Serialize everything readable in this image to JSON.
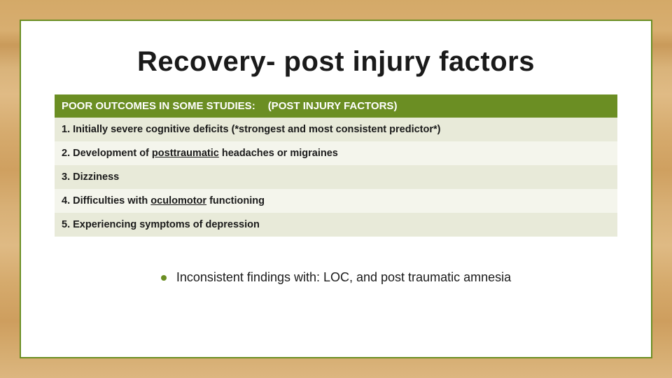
{
  "slide": {
    "title": "Recovery- post injury factors",
    "header_left": "POOR OUTCOMES IN SOME STUDIES:",
    "header_right": "(POST INJURY FACTORS)",
    "rows": [
      {
        "prefix": "1. Initially severe cognitive deficits (",
        "emphasis": "*strongest and most consistent predictor*",
        "suffix": ")"
      },
      {
        "prefix": "2. Development of ",
        "underline": "posttraumatic",
        "suffix": " headaches or migraines"
      },
      {
        "text": "3. Dizziness"
      },
      {
        "prefix": "4. Difficulties with ",
        "underline": "oculomotor",
        "suffix": " functioning"
      },
      {
        "text": "5. Experiencing symptoms of depression"
      }
    ],
    "bullet": "Inconsistent findings with: LOC, and post traumatic amnesia"
  },
  "colors": {
    "accent": "#6b8e23",
    "row_odd": "#e8ead9",
    "row_even": "#f4f5ec",
    "frame_bg": "#ffffff",
    "text": "#1a1a1a"
  }
}
